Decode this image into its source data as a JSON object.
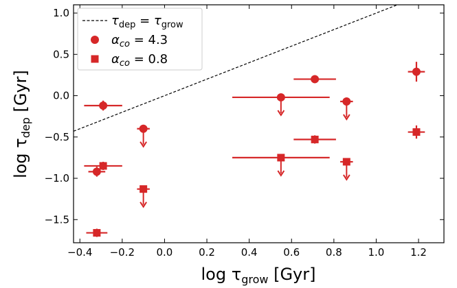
{
  "chart_data": {
    "type": "scatter",
    "xlabel": {
      "prefix": "log τ",
      "sub": "grow",
      "suffix": " [Gyr]"
    },
    "ylabel": {
      "prefix": "log τ",
      "sub": "dep",
      "suffix": " [Gyr]"
    },
    "xlim": [
      -0.43,
      1.32
    ],
    "ylim": [
      -1.78,
      1.1
    ],
    "xticks": [
      -0.4,
      -0.2,
      0.0,
      0.2,
      0.4,
      0.6,
      0.8,
      1.0,
      1.2
    ],
    "xtick_labels": [
      "−0.4",
      "−0.2",
      "0.0",
      "0.2",
      "0.4",
      "0.6",
      "0.8",
      "1.0",
      "1.2"
    ],
    "yticks": [
      -1.5,
      -1.0,
      -0.5,
      0.0,
      0.5,
      1.0
    ],
    "ytick_labels": [
      "−1.5",
      "−1.0",
      "−0.5",
      "0.0",
      "0.5",
      "1.0"
    ],
    "grid": false,
    "legend_position": "top-left",
    "reference_line": {
      "label": {
        "a": "τ",
        "a_sub": "dep",
        "eq": " = ",
        "b": "τ",
        "b_sub": "grow"
      },
      "x": [
        -0.43,
        1.32
      ],
      "y": [
        -0.43,
        1.32
      ],
      "color": "#000000"
    },
    "series": [
      {
        "name": "α_co = 4.3",
        "label": {
          "sym": "α",
          "sub": "co",
          "value": " = 4.3"
        },
        "marker": "circle",
        "color": "#d62728",
        "points": [
          {
            "x": -0.29,
            "y": -0.12,
            "xerr": 0.09,
            "yerr": 0.06,
            "upper_limit": false
          },
          {
            "x": -0.32,
            "y": -0.92,
            "xerr": 0.04,
            "yerr": 0.06,
            "upper_limit": false
          },
          {
            "x": -0.1,
            "y": -0.4,
            "xerr": 0.03,
            "yerr": 0.03,
            "upper_limit": true
          },
          {
            "x": 0.55,
            "y": -0.02,
            "xerr": 0.23,
            "yerr": 0.03,
            "upper_limit": true
          },
          {
            "x": 0.71,
            "y": 0.2,
            "xerr": 0.1,
            "yerr": 0.04,
            "upper_limit": false
          },
          {
            "x": 0.86,
            "y": -0.07,
            "xerr": 0.03,
            "yerr": 0.03,
            "upper_limit": true
          },
          {
            "x": 1.19,
            "y": 0.29,
            "xerr": 0.04,
            "yerr": 0.12,
            "upper_limit": false
          }
        ]
      },
      {
        "name": "α_co = 0.8",
        "label": {
          "sym": "α",
          "sub": "co",
          "value": " = 0.8"
        },
        "marker": "square",
        "color": "#d62728",
        "points": [
          {
            "x": -0.29,
            "y": -0.85,
            "xerr": 0.09,
            "yerr": 0.05,
            "upper_limit": false
          },
          {
            "x": -0.32,
            "y": -1.66,
            "xerr": 0.05,
            "yerr": 0.05,
            "upper_limit": false
          },
          {
            "x": -0.1,
            "y": -1.13,
            "xerr": 0.03,
            "yerr": 0.03,
            "upper_limit": true
          },
          {
            "x": 0.55,
            "y": -0.75,
            "xerr": 0.23,
            "yerr": 0.03,
            "upper_limit": true
          },
          {
            "x": 0.71,
            "y": -0.53,
            "xerr": 0.1,
            "yerr": 0.05,
            "upper_limit": false
          },
          {
            "x": 0.86,
            "y": -0.8,
            "xerr": 0.03,
            "yerr": 0.03,
            "upper_limit": true
          },
          {
            "x": 1.19,
            "y": -0.44,
            "xerr": 0.04,
            "yerr": 0.08,
            "upper_limit": false
          }
        ]
      }
    ]
  }
}
